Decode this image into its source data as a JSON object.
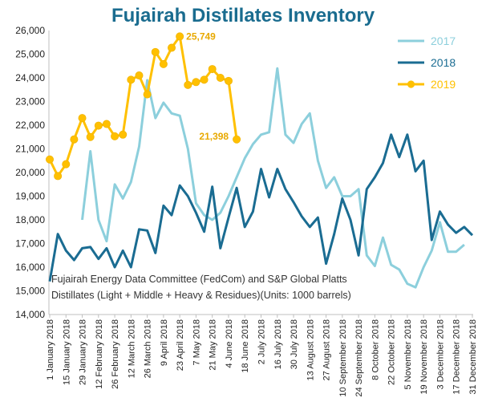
{
  "chart_data": {
    "type": "line",
    "title": "Fujairah Distillates Inventory",
    "xlabel": "",
    "ylabel": "",
    "ylim": [
      14000,
      26000
    ],
    "yticks": [
      "14,000",
      "15,000",
      "16,000",
      "17,000",
      "18,000",
      "19,000",
      "20,000",
      "21,000",
      "22,000",
      "23,000",
      "24,000",
      "25,000",
      "26,000"
    ],
    "x": [
      "1 January 2018",
      "8 January 2018",
      "15 January 2018",
      "22 January 2018",
      "29 January 2018",
      "5 February 2018",
      "12 February 2018",
      "19 February 2018",
      "26 February 2018",
      "5 March 2018",
      "12 March 2018",
      "19 March 2018",
      "26 March 2018",
      "2 April 2018",
      "9 April 2018",
      "16 April 2018",
      "23 April 2018",
      "30 April 2018",
      "7 May 2018",
      "14 May 2018",
      "21 May 2018",
      "28 May 2018",
      "4 June 2018",
      "11 June 2018",
      "18 June 2018",
      "25 June 2018",
      "2 July 2018",
      "9 July 2018",
      "16 July 2018",
      "23 July 2018",
      "30 July 2018",
      "6 August 2018",
      "13 August 2018",
      "20 August 2018",
      "27 August 2018",
      "3 September 2018",
      "10 September 2018",
      "17 September 2018",
      "24 September 2018",
      "1 October 2018",
      "8 October 2018",
      "15 October 2018",
      "22 October 2018",
      "29 October 2018",
      "5 November 2018",
      "12 November 2018",
      "19 November 2018",
      "26 November 2018",
      "3 December 2018",
      "10 December 2018",
      "17 December 2018",
      "24 December 2018",
      "31 December 2018"
    ],
    "x_tick_labels": [
      "1 January 2018",
      "15 January 2018",
      "29 January 2018",
      "12 February 2018",
      "26 February 2018",
      "12 March 2018",
      "26 March 2018",
      "9 April 2018",
      "23 April 2018",
      "7 May 2018",
      "21 May 2018",
      "4 June 2018",
      "18 June 2018",
      "2 July 2018",
      "16 July 2018",
      "30 July 2018",
      "13 August 2018",
      "27 August 2018",
      "10 September 2018",
      "24 September 2018",
      "8 October 2018",
      "22 October 2018",
      "5 November 2018",
      "19 November 2018",
      "3 December 2018",
      "17 December 2018",
      "31 December 2018"
    ],
    "series": [
      {
        "name": "2017",
        "color": "#8ccfdc",
        "values": [
          null,
          null,
          null,
          null,
          18000,
          20900,
          18000,
          17100,
          19500,
          18900,
          19600,
          21100,
          23900,
          22300,
          22950,
          22500,
          22400,
          21000,
          18700,
          18200,
          18000,
          18300,
          19000,
          19800,
          20600,
          21200,
          21600,
          21700,
          24400,
          21600,
          21250,
          22050,
          22500,
          20500,
          19350,
          19800,
          19000,
          19000,
          19300,
          16500,
          16050,
          17250,
          16100,
          15900,
          15300,
          15150,
          16000,
          16700,
          17900,
          16650,
          16650,
          16950,
          null
        ]
      },
      {
        "name": "2018",
        "color": "#1a6c92",
        "values": [
          15400,
          17400,
          16700,
          16300,
          16800,
          16850,
          16350,
          16800,
          16000,
          16700,
          16000,
          17600,
          17550,
          16600,
          18600,
          18200,
          19450,
          19000,
          18300,
          17500,
          19400,
          16800,
          18100,
          19350,
          17700,
          18350,
          20150,
          18950,
          20150,
          19300,
          18750,
          18150,
          17700,
          18100,
          16150,
          17400,
          18900,
          18000,
          16500,
          19300,
          19800,
          20400,
          21600,
          20650,
          21600,
          20050,
          20500,
          17150,
          18350,
          17800,
          17450,
          17700,
          17350
        ]
      },
      {
        "name": "2019",
        "color": "#ffc000",
        "values": [
          20550,
          19850,
          20350,
          21400,
          22300,
          21500,
          21980,
          22050,
          21530,
          21600,
          23920,
          24100,
          23300,
          25090,
          24580,
          25270,
          25749,
          23700,
          23820,
          23920,
          24370,
          24000,
          23870,
          21398,
          null,
          null,
          null,
          null,
          null,
          null,
          null,
          null,
          null,
          null,
          null,
          null,
          null,
          null,
          null,
          null,
          null,
          null,
          null,
          null,
          null,
          null,
          null,
          null,
          null,
          null,
          null,
          null,
          null
        ]
      }
    ],
    "legend": {
      "position": "top-right"
    },
    "annotations": [
      {
        "text": "25,749",
        "series": "2019",
        "x": "23 April 2018",
        "value": 25749
      },
      {
        "text": "21,398",
        "series": "2019",
        "x": "11 June 2018",
        "value": 21398
      }
    ],
    "source_line1": "Fujairah Energy Data Committee  (FedCom) and S&P Global Platts",
    "source_line2": "Distillates (Light + Middle + Heavy & Residues)(Units: 1000 barrels)",
    "grid": false
  }
}
